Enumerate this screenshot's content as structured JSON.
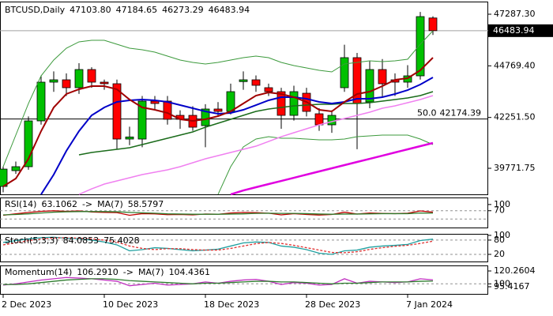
{
  "chart_data": [
    {
      "type": "candlestick",
      "symbol": "BTCUSD,Daily",
      "categories": [
        "2 Dec 2023",
        null,
        null,
        null,
        null,
        null,
        null,
        null,
        "10 Dec 2023",
        null,
        null,
        null,
        null,
        null,
        null,
        null,
        "18 Dec 2023",
        null,
        null,
        null,
        null,
        null,
        null,
        null,
        "28 Dec 2023",
        null,
        null,
        null,
        null,
        null,
        null,
        null,
        "7 Jan 2024",
        null,
        null
      ],
      "open": [
        38886,
        39656,
        39849,
        42084,
        43973,
        44088,
        43703,
        44589,
        43973,
        43896,
        41198,
        41198,
        43048,
        43048,
        42354,
        42354,
        41853,
        42663,
        42547,
        44000,
        44088,
        43703,
        43510,
        42354,
        43433,
        42431,
        41892,
        43703,
        45168,
        43009,
        44589,
        44088,
        43973,
        44281,
        47103.8
      ],
      "high": [
        39850,
        40100,
        42300,
        44300,
        44500,
        44400,
        44900,
        44700,
        44100,
        44100,
        41800,
        43300,
        43300,
        43300,
        42600,
        42800,
        42900,
        43000,
        43900,
        44500,
        44300,
        43900,
        43700,
        43800,
        43700,
        42700,
        42600,
        45800,
        45400,
        45000,
        45100,
        44400,
        44800,
        47400,
        47184.65
      ],
      "low": [
        38600,
        39500,
        39700,
        41900,
        43500,
        43300,
        43400,
        43700,
        43600,
        40700,
        40900,
        40800,
        42600,
        41900,
        41700,
        41600,
        40800,
        42300,
        42400,
        43600,
        43500,
        43300,
        41700,
        42100,
        42300,
        41600,
        41500,
        43500,
        40700,
        42700,
        43200,
        43300,
        43700,
        44100,
        46273.29
      ],
      "close": [
        39733,
        39850,
        42084,
        43973,
        44088,
        43703,
        44589,
        43973,
        43896,
        41198,
        41300,
        43048,
        42932,
        42162,
        42162,
        41776,
        42663,
        42547,
        43510,
        44088,
        43819,
        43510,
        42354,
        43510,
        42547,
        41892,
        42354,
        45168,
        42932,
        44589,
        43896,
        43973,
        44281,
        47171,
        46483.94
      ],
      "ohlc_labels": [
        "47103.80",
        "47184.65",
        "46273.29",
        "46483.94"
      ],
      "up_color": "#00c000",
      "down_color": "#ff0000",
      "ylim": [
        38501,
        47865
      ],
      "yticks": [
        {
          "value": 47287.3,
          "label": "47287.30"
        },
        {
          "value": 44769.4,
          "label": "44769.40"
        },
        {
          "value": 42251.5,
          "label": "42251.50"
        },
        {
          "value": 39771.75,
          "label": "39771.75"
        }
      ],
      "fibo": {
        "ratio_label": "50.0",
        "price": 42174.39
      },
      "overlays": [
        {
          "color": "#3c9a3c",
          "width": 1,
          "values": [
            39849,
            41391,
            42932,
            44281,
            45052,
            45630,
            45939,
            46016,
            46016,
            45823,
            45630,
            45553,
            45437,
            45245,
            45052,
            44936,
            44859,
            44936,
            45052,
            45168,
            45245,
            45168,
            44936,
            44782,
            44667,
            44551,
            44474,
            44859,
            44936,
            45014,
            44975,
            45014,
            45091,
            45823,
            46478
          ]
        },
        {
          "color": "#3c9a3c",
          "width": 1,
          "values": [
            null,
            null,
            null,
            null,
            null,
            null,
            null,
            null,
            null,
            null,
            null,
            null,
            null,
            null,
            null,
            null,
            null,
            38500,
            39849,
            40813,
            41198,
            41313,
            41236,
            41236,
            41198,
            41159,
            41159,
            41198,
            41313,
            41352,
            41391,
            41391,
            41391,
            41198,
            40928
          ]
        },
        {
          "color": "#f080f0",
          "width": 1.5,
          "values": [
            null,
            null,
            null,
            null,
            null,
            null,
            38500,
            38770,
            39001,
            39155,
            39309,
            39464,
            39579,
            39695,
            39849,
            40042,
            40234,
            40388,
            40543,
            40697,
            40851,
            41082,
            41313,
            41507,
            41700,
            41892,
            42046,
            42200,
            42354,
            42508,
            42701,
            42817,
            42971,
            43125,
            43318
          ]
        },
        {
          "color": "#e000e0",
          "width": 2.5,
          "values": [
            null,
            null,
            null,
            null,
            null,
            null,
            null,
            null,
            null,
            null,
            null,
            null,
            null,
            null,
            null,
            null,
            null,
            null,
            38500,
            38693,
            38847,
            39001,
            39155,
            39309,
            39464,
            39618,
            39772,
            39926,
            40080,
            40234,
            40388,
            40543,
            40697,
            40851,
            41005
          ]
        },
        {
          "color": "#1a6b1a",
          "width": 1.5,
          "values": [
            null,
            null,
            null,
            null,
            null,
            null,
            40427,
            40543,
            40620,
            40697,
            40774,
            40928,
            41082,
            41236,
            41391,
            41545,
            41776,
            41969,
            42162,
            42354,
            42547,
            42663,
            42739,
            42817,
            42855,
            42894,
            42894,
            42932,
            42932,
            42971,
            43048,
            43125,
            43202,
            43318,
            43510
          ]
        },
        {
          "color": "#0000c8",
          "width": 2,
          "values": [
            null,
            null,
            null,
            38500,
            39464,
            40620,
            41583,
            42354,
            42739,
            43009,
            43087,
            43125,
            43087,
            43009,
            42855,
            42701,
            42547,
            42431,
            42470,
            42624,
            42855,
            43087,
            43241,
            43241,
            43164,
            43009,
            42932,
            43009,
            43164,
            43164,
            43241,
            43395,
            43587,
            43857,
            44204
          ]
        },
        {
          "color": "#a00000",
          "width": 2,
          "values": [
            38886,
            39271,
            40234,
            41583,
            42739,
            43395,
            43626,
            43780,
            43780,
            43626,
            43125,
            42739,
            42624,
            42470,
            42162,
            42084,
            42162,
            42316,
            42547,
            42932,
            43318,
            43472,
            43395,
            43241,
            43009,
            42624,
            42547,
            43009,
            43395,
            43510,
            43780,
            44088,
            44165,
            44551,
            45168
          ]
        }
      ]
    },
    {
      "type": "line",
      "separator": "->",
      "ylim": [
        -11,
        130
      ],
      "yticks": [
        100,
        70
      ],
      "levels": [
        70,
        30
      ],
      "series": [
        {
          "name": "RSI(14)",
          "color": "#c00000",
          "values": [
            48,
            55,
            62,
            67,
            70,
            67,
            69,
            64,
            62,
            61,
            48,
            56,
            55,
            51,
            52,
            50,
            54,
            53,
            59,
            62,
            61,
            58,
            50,
            56,
            52,
            49,
            52,
            63,
            54,
            59,
            57,
            56,
            58,
            69,
            63.1062
          ]
        },
        {
          "name": "MA(7)",
          "color": "#2e7d2e",
          "values": [
            50,
            52,
            55,
            59,
            63,
            65,
            66,
            66,
            66,
            65,
            62,
            60,
            58,
            55,
            54,
            53,
            53,
            53,
            54,
            55,
            57,
            58,
            57,
            57,
            56,
            54,
            53,
            54,
            54,
            55,
            56,
            56,
            56,
            59,
            58.5797
          ]
        }
      ]
    },
    {
      "type": "line",
      "ylim": [
        -10,
        103
      ],
      "yticks": [
        100,
        80,
        20
      ],
      "levels": [
        80,
        20
      ],
      "series": [
        {
          "name": "Stoch(5,3,3)",
          "color": "#1fa0a0",
          "values": [
            70,
            78,
            85,
            90,
            92,
            88,
            86,
            80,
            72,
            60,
            35,
            40,
            48,
            45,
            40,
            35,
            38,
            42,
            55,
            68,
            72,
            70,
            55,
            50,
            40,
            25,
            20,
            35,
            38,
            50,
            55,
            58,
            62,
            78,
            84.0853
          ]
        },
        {
          "color": "#e03030",
          "dash": true,
          "values": [
            60,
            68,
            78,
            85,
            89,
            90,
            88,
            85,
            80,
            72,
            55,
            45,
            40,
            44,
            44,
            40,
            38,
            38,
            45,
            55,
            65,
            70,
            66,
            58,
            48,
            38,
            28,
            27,
            31,
            41,
            48,
            54,
            58,
            66,
            75.4028
          ]
        }
      ]
    },
    {
      "type": "line",
      "separator": "->",
      "ylim": [
        84.2,
        127.7
      ],
      "yticks": [
        120.2604,
        95.4167,
        100
      ],
      "levels": [
        100
      ],
      "series": [
        {
          "name": "Momentum(14)",
          "color": "#c030c0",
          "last_label": "106.2910",
          "values": [
            98,
            100,
            103,
            106,
            108,
            110,
            109,
            108,
            106,
            104,
            97,
            99,
            101,
            98,
            99,
            100,
            103,
            101,
            104,
            106,
            107,
            104,
            99,
            102,
            101,
            98,
            99,
            108,
            101,
            104,
            103,
            102,
            103,
            108,
            106.291
          ]
        },
        {
          "name": "MA(7)",
          "color": "#2e7d2e",
          "values": [
            99,
            99,
            100,
            102,
            104,
            106,
            107,
            108,
            108,
            107,
            105,
            104,
            103,
            102,
            101,
            100,
            101,
            101,
            102,
            103,
            104,
            104,
            103,
            103,
            102,
            101,
            100,
            101,
            101,
            102,
            103,
            103,
            103,
            104,
            104.4361
          ]
        }
      ]
    }
  ]
}
